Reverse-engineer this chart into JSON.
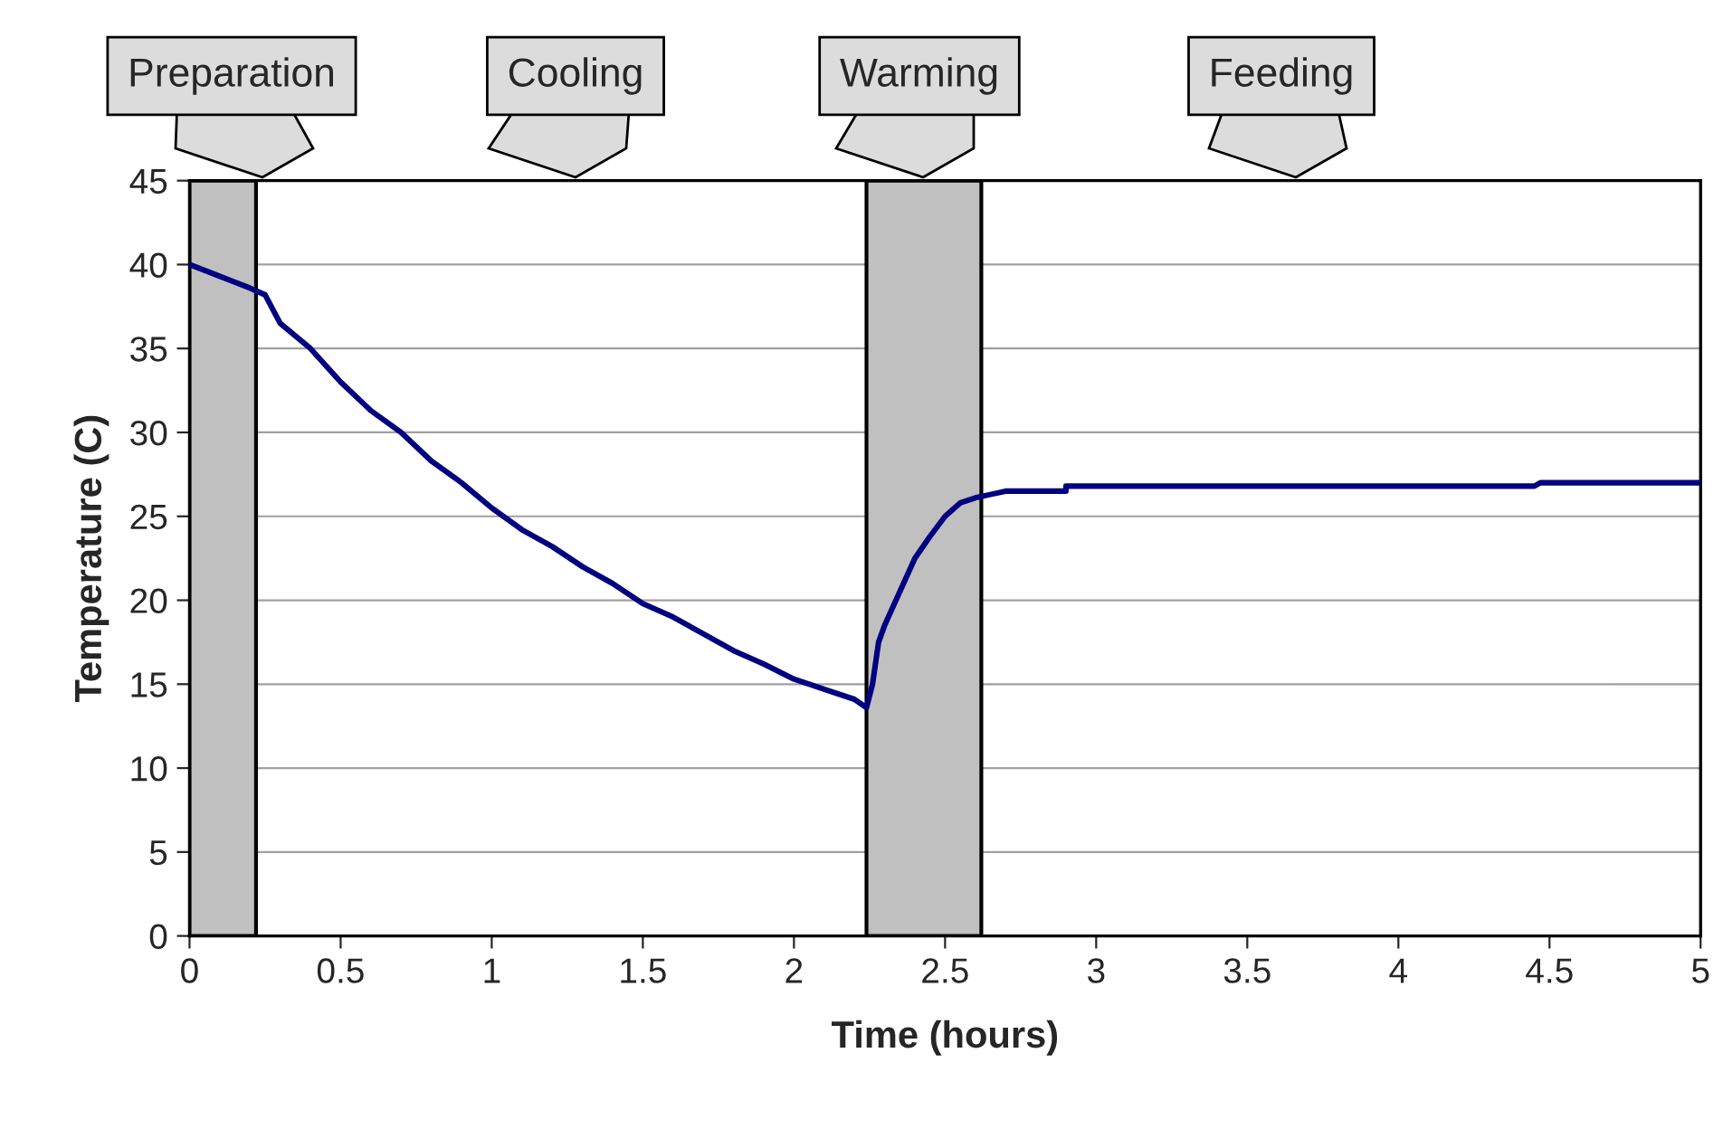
{
  "chart_data": {
    "type": "line",
    "xlabel": "Time (hours)",
    "ylabel": "Temperature (C)",
    "xlim": [
      0,
      5
    ],
    "xticks": [
      0,
      0.5,
      1,
      1.5,
      2,
      2.5,
      3,
      3.5,
      4,
      4.5,
      5
    ],
    "ylim": [
      0,
      45
    ],
    "yticks": [
      0,
      5,
      10,
      15,
      20,
      25,
      30,
      35,
      40,
      45
    ],
    "grid": "y",
    "legend": false,
    "bands": [
      {
        "axis": "x",
        "from": 0,
        "to": 0.22,
        "color": "#c0c0c0"
      },
      {
        "axis": "x",
        "from": 2.24,
        "to": 2.62,
        "color": "#c0c0c0"
      }
    ],
    "annotations": [
      "Preparation",
      "Cooling",
      "Warming",
      "Feeding"
    ],
    "series": [
      {
        "color": "#000080",
        "x": [
          0,
          0.1,
          0.2,
          0.25,
          0.3,
          0.4,
          0.5,
          0.6,
          0.7,
          0.8,
          0.9,
          1.0,
          1.1,
          1.2,
          1.3,
          1.4,
          1.5,
          1.6,
          1.7,
          1.8,
          1.9,
          2.0,
          2.1,
          2.2,
          2.24,
          2.26,
          2.28,
          2.3,
          2.35,
          2.4,
          2.45,
          2.5,
          2.55,
          2.6,
          2.65,
          2.7,
          2.9,
          2.9,
          4.45,
          4.47,
          5
        ],
        "values": [
          40,
          39.3,
          38.6,
          38.2,
          36.5,
          35,
          33,
          31.3,
          30,
          28.3,
          27,
          25.5,
          24.2,
          23.2,
          22,
          21,
          19.8,
          19,
          18,
          17,
          16.2,
          15.3,
          14.7,
          14.1,
          13.6,
          15,
          17.5,
          18.5,
          20.5,
          22.5,
          23.8,
          25,
          25.8,
          26.1,
          26.3,
          26.5,
          26.5,
          26.8,
          26.8,
          27,
          27
        ]
      }
    ]
  }
}
